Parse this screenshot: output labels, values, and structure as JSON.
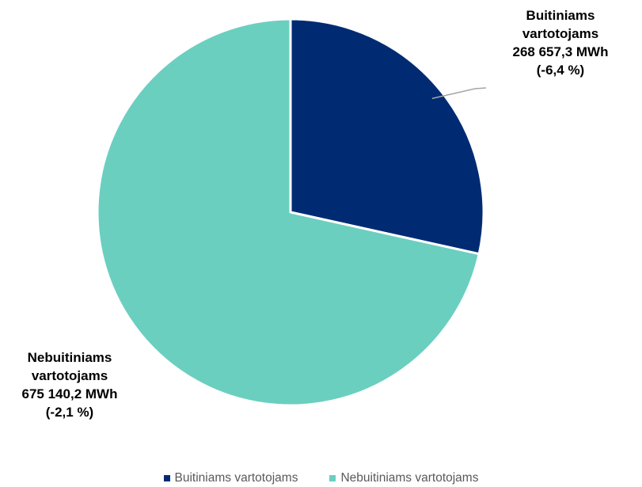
{
  "chart_data": {
    "type": "pie",
    "title": "",
    "unit": "MWh",
    "slices": [
      {
        "name": "Buitiniams vartotojams",
        "value": 268657.3,
        "color": "#002B73",
        "label_lines": [
          "Buitiniams",
          "vartotojams",
          "268 657,3 MWh",
          "(-6,4 %)"
        ]
      },
      {
        "name": "Nebuitiniams vartotojams",
        "value": 675140.2,
        "color": "#6BCFC0",
        "label_lines": [
          "Nebuitiniams",
          "vartotojams",
          "675 140,2 MWh",
          "(-2,1 %)"
        ]
      }
    ],
    "legend": {
      "position": "bottom",
      "entries": [
        "Buitiniams vartotojams",
        "Nebuitiniams vartotojams"
      ]
    }
  }
}
